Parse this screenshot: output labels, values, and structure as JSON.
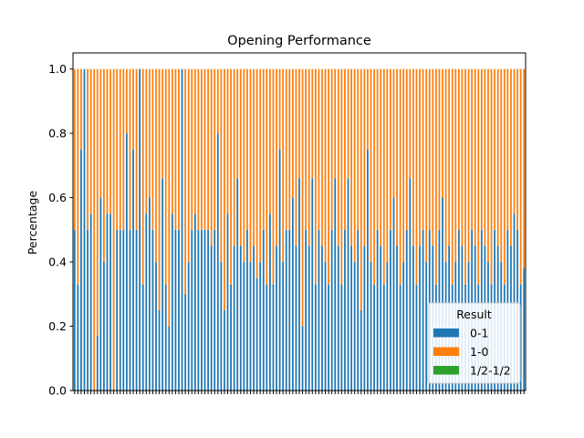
{
  "chart_data": {
    "type": "bar",
    "stacked": true,
    "title": "Opening Performance",
    "xlabel": "",
    "ylabel": "Percentage",
    "ylim": [
      0,
      1.05
    ],
    "yticks": [
      "0.0",
      "0.2",
      "0.4",
      "0.6",
      "0.8",
      "1.0"
    ],
    "xtick_labels_legible": false,
    "legend": {
      "title": "Result",
      "position": "bottom-right",
      "entries": [
        {
          "label": "0-1",
          "color": "#1f77b4"
        },
        {
          "label": "1-0",
          "color": "#ff7f0e"
        },
        {
          "label": "1/2-1/2",
          "color": "#2ca02c"
        }
      ]
    },
    "series": [
      {
        "name": "0-1",
        "color": "#1f77b4",
        "values": [
          0.5,
          0.33,
          0.75,
          1,
          0.5,
          0.55,
          0,
          0.17,
          0.6,
          0.4,
          0.55,
          0.55,
          0,
          0.5,
          0.5,
          0.5,
          0.8,
          0.5,
          0.75,
          0.5,
          1,
          0.33,
          0.55,
          0.6,
          0.5,
          0.4,
          0.25,
          0.66,
          0.33,
          0.2,
          0.55,
          0.5,
          0.5,
          1,
          0.3,
          0.4,
          0.5,
          0.55,
          0.5,
          0.5,
          0.5,
          0.5,
          0.45,
          0.5,
          0.8,
          0.4,
          0.25,
          0.55,
          0.33,
          0.45,
          0.66,
          0.45,
          0.4,
          0.5,
          0.4,
          0.45,
          0.35,
          0.4,
          0.5,
          0.33,
          0.55,
          0.33,
          0.45,
          0.75,
          0.4,
          0.5,
          0.5,
          0.6,
          0.45,
          0.66,
          0.2,
          0.5,
          0.45,
          0.66,
          0.33,
          0.5,
          0.45,
          0.4,
          0.33,
          0.5,
          0.66,
          0.45,
          0.33,
          0.5,
          0.66,
          0.45,
          0.4,
          0.5,
          0.25,
          0.45,
          0.75,
          0.4,
          0.33,
          0.5,
          0.45,
          0.33,
          0.4,
          0.5,
          0.6,
          0.45,
          0.33,
          0.4,
          0.5,
          0.66,
          0.45,
          0.33,
          0.45,
          0.5,
          0.4,
          0.5,
          0.45,
          0.33,
          0.5,
          0.6,
          0.4,
          0.45,
          0.33,
          0.4,
          0.5,
          0.45,
          0.33,
          0.4,
          0.5,
          0.45,
          0.33,
          0.5,
          0.45,
          0.4,
          0.33,
          0.5,
          0.45,
          0.4,
          0.33,
          0.5,
          0.45,
          0.55,
          0.5,
          0.33,
          0.38
        ]
      },
      {
        "name": "1-0",
        "color": "#ff7f0e",
        "values": [
          0.5,
          0.67,
          0.25,
          0,
          0.5,
          0.45,
          1,
          0.83,
          0.4,
          0.6,
          0.45,
          0.45,
          1,
          0.5,
          0.5,
          0.5,
          0.2,
          0.5,
          0.25,
          0.5,
          0,
          0.67,
          0.45,
          0.4,
          0.5,
          0.6,
          0.75,
          0.34,
          0.67,
          0.8,
          0.45,
          0.5,
          0.5,
          0,
          0.7,
          0.6,
          0.5,
          0.45,
          0.5,
          0.5,
          0.5,
          0.5,
          0.55,
          0.5,
          0.2,
          0.6,
          0.75,
          0.45,
          0.67,
          0.55,
          0.34,
          0.55,
          0.6,
          0.5,
          0.6,
          0.55,
          0.65,
          0.6,
          0.5,
          0.67,
          0.45,
          0.67,
          0.55,
          0.25,
          0.6,
          0.5,
          0.5,
          0.4,
          0.55,
          0.34,
          0.8,
          0.5,
          0.55,
          0.34,
          0.67,
          0.5,
          0.55,
          0.6,
          0.67,
          0.5,
          0.34,
          0.55,
          0.67,
          0.5,
          0.34,
          0.55,
          0.6,
          0.5,
          0.75,
          0.55,
          0.25,
          0.6,
          0.67,
          0.5,
          0.55,
          0.67,
          0.6,
          0.5,
          0.4,
          0.55,
          0.67,
          0.6,
          0.5,
          0.34,
          0.55,
          0.67,
          0.55,
          0.5,
          0.6,
          0.5,
          0.55,
          0.67,
          0.5,
          0.4,
          0.6,
          0.55,
          0.67,
          0.6,
          0.5,
          0.55,
          0.67,
          0.6,
          0.5,
          0.55,
          0.67,
          0.5,
          0.55,
          0.6,
          0.67,
          0.5,
          0.55,
          0.6,
          0.67,
          0.5,
          0.55,
          0.45,
          0.5,
          0.67,
          0.62
        ]
      },
      {
        "name": "1/2-1/2",
        "color": "#2ca02c",
        "values": [
          0,
          0,
          0,
          0,
          0,
          0,
          0,
          0,
          0,
          0,
          0,
          0,
          0,
          0,
          0,
          0,
          0,
          0,
          0,
          0,
          0,
          0,
          0,
          0,
          0,
          0,
          0,
          0,
          0,
          0,
          0,
          0,
          0,
          0,
          0,
          0,
          0,
          0,
          0,
          0,
          0,
          0,
          0,
          0,
          0,
          0,
          0,
          0,
          0,
          0,
          0,
          0,
          0,
          0,
          0,
          0,
          0,
          0,
          0,
          0,
          0,
          0,
          0,
          0,
          0,
          0,
          0,
          0,
          0,
          0,
          0,
          0,
          0,
          0,
          0,
          0,
          0,
          0,
          0,
          0,
          0,
          0,
          0,
          0,
          0,
          0,
          0,
          0,
          0,
          0,
          0,
          0,
          0,
          0,
          0,
          0,
          0,
          0,
          0,
          0,
          0,
          0,
          0,
          0,
          0,
          0,
          0,
          0,
          0,
          0,
          0,
          0,
          0,
          0,
          0,
          0,
          0,
          0,
          0,
          0,
          0,
          0,
          0,
          0,
          0,
          0,
          0,
          0,
          0,
          0,
          0,
          0,
          0,
          0,
          0,
          0,
          0,
          0,
          0,
          0,
          0
        ]
      }
    ]
  }
}
